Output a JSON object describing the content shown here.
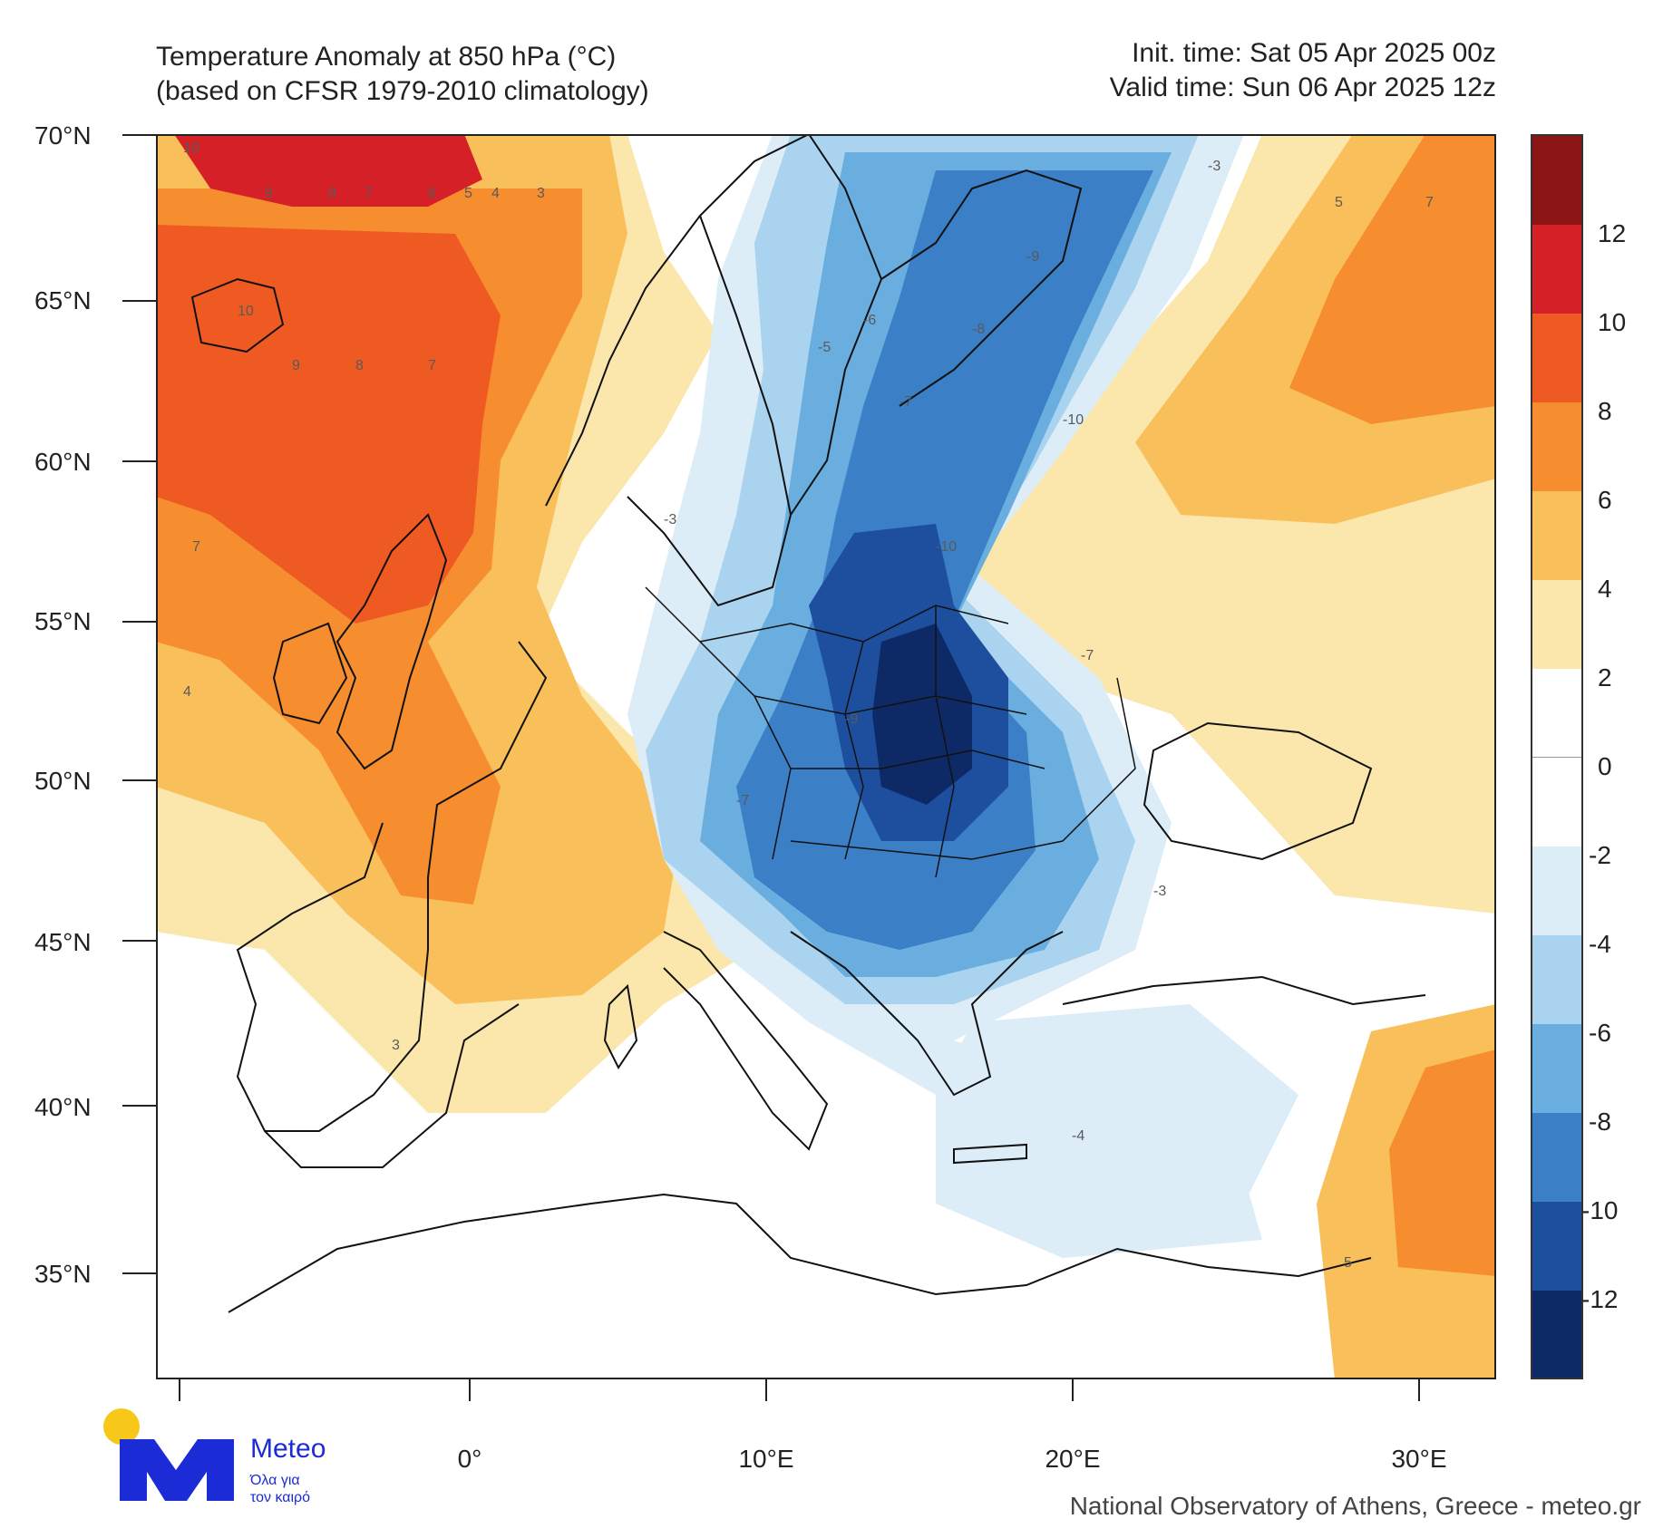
{
  "header": {
    "title_line1": "Temperature Anomaly at 850 hPa (°C)",
    "title_line2": "(based on CFSR 1979-2010 climatology)",
    "init_time": "Init. time: Sat 05 Apr 2025 00z",
    "valid_time": "Valid time: Sun 06 Apr 2025 12z"
  },
  "axes": {
    "lat_labels": [
      "70°N",
      "65°N",
      "60°N",
      "55°N",
      "50°N",
      "45°N",
      "40°N",
      "35°N"
    ],
    "lon_labels": [
      "0°",
      "10°E",
      "20°E",
      "30°E"
    ]
  },
  "colorbar": {
    "labels": [
      "12",
      "10",
      "8",
      "6",
      "4",
      "2",
      "0",
      "-2",
      "-4",
      "-6",
      "-8",
      "-10",
      "-12"
    ],
    "colors": [
      "#8b1414",
      "#d62027",
      "#ef5a23",
      "#f68e2f",
      "#f9bf5a",
      "#fbe7ac",
      "#ffffff",
      "#ffffff",
      "#dcedf7",
      "#a9d3ee",
      "#6aaee0",
      "#3b7fc6",
      "#1d4f9e",
      "#0e2a66"
    ]
  },
  "map": {
    "ocean_color": "#ffffff",
    "coast_color": "#111111",
    "sample_values": [
      {
        "v": "10",
        "tone": "warm"
      },
      {
        "v": "9",
        "tone": "warm"
      },
      {
        "v": "8",
        "tone": "warm"
      },
      {
        "v": "7",
        "tone": "warm"
      },
      {
        "v": "6",
        "tone": "warm"
      },
      {
        "v": "5",
        "tone": "warm"
      },
      {
        "v": "4",
        "tone": "warm"
      },
      {
        "v": "3",
        "tone": "warm"
      },
      {
        "v": "-3",
        "tone": "cold"
      },
      {
        "v": "-5",
        "tone": "cold"
      },
      {
        "v": "-6",
        "tone": "cold"
      },
      {
        "v": "-7",
        "tone": "cold"
      },
      {
        "v": "-8",
        "tone": "cold"
      },
      {
        "v": "-9",
        "tone": "cold"
      },
      {
        "v": "-10",
        "tone": "cold"
      },
      {
        "v": "-4",
        "tone": "cold"
      }
    ]
  },
  "branding": {
    "logo_name": "Meteo",
    "logo_tagline_1": "Όλα για",
    "logo_tagline_2": "τον καιρό",
    "credit": "National Observatory of Athens, Greece - meteo.gr",
    "logo_blue": "#1b2bd6",
    "logo_yellow": "#f7c81a"
  }
}
